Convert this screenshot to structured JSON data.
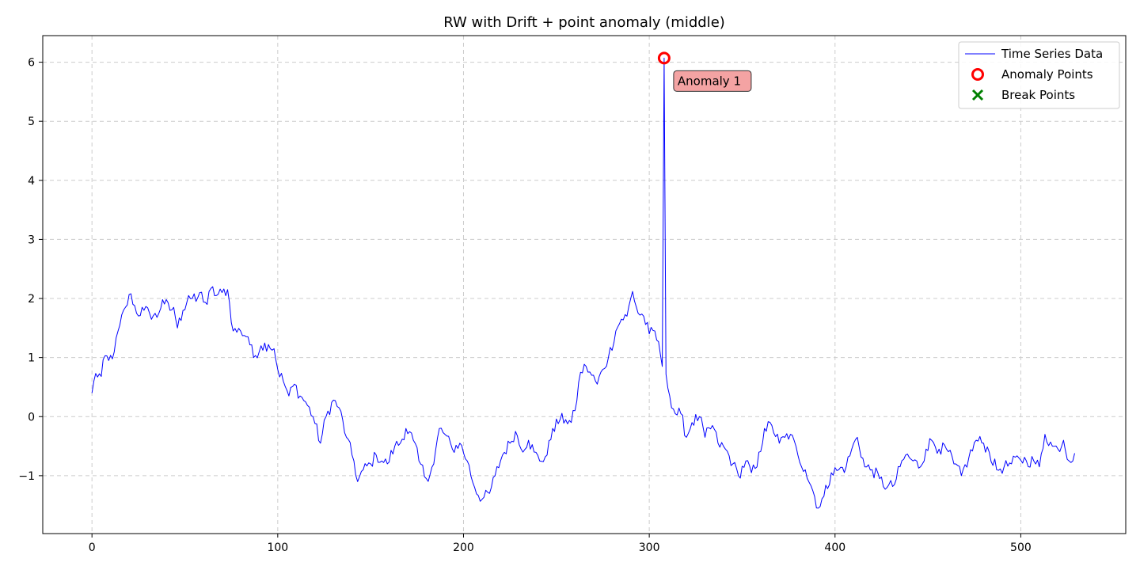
{
  "chart_data": {
    "type": "line",
    "title": "RW with Drift + point anomaly (middle)",
    "xlabel": "",
    "ylabel": "",
    "xlim": [
      -26.5,
      556.5
    ],
    "ylim": [
      -1.98,
      6.45
    ],
    "x_ticks": [
      0,
      100,
      200,
      300,
      400,
      500
    ],
    "y_ticks": [
      -1,
      0,
      1,
      2,
      3,
      4,
      5,
      6
    ],
    "y_tick_labels": [
      "−1",
      "0",
      "1",
      "2",
      "3",
      "4",
      "5",
      "6"
    ],
    "grid": true,
    "legend_position": "top-right",
    "colors": {
      "series": "#0000ff",
      "anomaly": "#ff0000",
      "break": "#008000",
      "annotation_bg": "#f4a3a3",
      "grid": "#cccccc"
    },
    "series": [
      {
        "name": "Time Series Data",
        "x_start": 0,
        "x_end": 529,
        "anchors": [
          [
            0,
            0.4
          ],
          [
            2,
            0.73
          ],
          [
            5,
            0.68
          ],
          [
            7,
            1.03
          ],
          [
            9,
            0.95
          ],
          [
            12,
            1.1
          ],
          [
            15,
            1.55
          ],
          [
            18,
            1.85
          ],
          [
            21,
            2.08
          ],
          [
            24,
            1.75
          ],
          [
            28,
            1.8
          ],
          [
            31,
            1.75
          ],
          [
            35,
            1.68
          ],
          [
            38,
            1.98
          ],
          [
            42,
            1.8
          ],
          [
            44,
            1.85
          ],
          [
            46,
            1.5
          ],
          [
            49,
            1.8
          ],
          [
            52,
            2.05
          ],
          [
            56,
            1.95
          ],
          [
            58,
            2.1
          ],
          [
            62,
            1.9
          ],
          [
            64,
            2.17
          ],
          [
            67,
            2.05
          ],
          [
            70,
            2.1
          ],
          [
            73,
            2.15
          ],
          [
            76,
            1.45
          ],
          [
            80,
            1.45
          ],
          [
            84,
            1.35
          ],
          [
            87,
            1.0
          ],
          [
            91,
            1.2
          ],
          [
            95,
            1.22
          ],
          [
            98,
            1.15
          ],
          [
            100,
            0.8
          ],
          [
            103,
            0.6
          ],
          [
            106,
            0.35
          ],
          [
            109,
            0.55
          ],
          [
            112,
            0.35
          ],
          [
            115,
            0.25
          ],
          [
            119,
            0.0
          ],
          [
            123,
            -0.45
          ],
          [
            126,
            0.0
          ],
          [
            130,
            0.28
          ],
          [
            133,
            0.15
          ],
          [
            137,
            -0.35
          ],
          [
            141,
            -0.75
          ],
          [
            143,
            -1.1
          ],
          [
            146,
            -0.9
          ],
          [
            150,
            -0.8
          ],
          [
            153,
            -0.65
          ],
          [
            156,
            -0.75
          ],
          [
            159,
            -0.8
          ],
          [
            163,
            -0.5
          ],
          [
            166,
            -0.45
          ],
          [
            169,
            -0.2
          ],
          [
            173,
            -0.4
          ],
          [
            176,
            -0.75
          ],
          [
            180,
            -1.05
          ],
          [
            184,
            -0.8
          ],
          [
            187,
            -0.2
          ],
          [
            190,
            -0.3
          ],
          [
            194,
            -0.55
          ],
          [
            198,
            -0.45
          ],
          [
            202,
            -0.75
          ],
          [
            206,
            -1.2
          ],
          [
            210,
            -1.4
          ],
          [
            214,
            -1.3
          ],
          [
            217,
            -1.0
          ],
          [
            221,
            -0.65
          ],
          [
            225,
            -0.45
          ],
          [
            228,
            -0.25
          ],
          [
            231,
            -0.55
          ],
          [
            235,
            -0.4
          ],
          [
            238,
            -0.6
          ],
          [
            241,
            -0.75
          ],
          [
            245,
            -0.65
          ],
          [
            248,
            -0.2
          ],
          [
            252,
            -0.05
          ],
          [
            255,
            -0.05
          ],
          [
            258,
            -0.1
          ],
          [
            260,
            0.1
          ],
          [
            263,
            0.75
          ],
          [
            266,
            0.85
          ],
          [
            269,
            0.7
          ],
          [
            272,
            0.55
          ],
          [
            275,
            0.8
          ],
          [
            278,
            1.0
          ],
          [
            282,
            1.45
          ],
          [
            285,
            1.65
          ],
          [
            288,
            1.7
          ],
          [
            291,
            2.12
          ],
          [
            294,
            1.75
          ],
          [
            297,
            1.7
          ],
          [
            300,
            1.4
          ],
          [
            303,
            1.45
          ],
          [
            306,
            1.05
          ],
          [
            307,
            0.85
          ],
          [
            308,
            6.07
          ],
          [
            309,
            0.72
          ],
          [
            311,
            0.35
          ],
          [
            314,
            0.05
          ],
          [
            317,
            0.05
          ],
          [
            320,
            -0.35
          ],
          [
            323,
            -0.1
          ],
          [
            327,
            0.0
          ],
          [
            330,
            -0.35
          ],
          [
            334,
            -0.15
          ],
          [
            337,
            -0.45
          ],
          [
            341,
            -0.55
          ],
          [
            345,
            -0.8
          ],
          [
            348,
            -1.0
          ],
          [
            352,
            -0.75
          ],
          [
            355,
            -0.95
          ],
          [
            358,
            -0.85
          ],
          [
            362,
            -0.2
          ],
          [
            366,
            -0.15
          ],
          [
            370,
            -0.45
          ],
          [
            373,
            -0.35
          ],
          [
            376,
            -0.3
          ],
          [
            380,
            -0.65
          ],
          [
            384,
            -0.9
          ],
          [
            388,
            -1.25
          ],
          [
            391,
            -1.55
          ],
          [
            394,
            -1.35
          ],
          [
            398,
            -0.95
          ],
          [
            402,
            -0.9
          ],
          [
            406,
            -0.85
          ],
          [
            409,
            -0.55
          ],
          [
            412,
            -0.35
          ],
          [
            416,
            -0.85
          ],
          [
            420,
            -0.9
          ],
          [
            424,
            -1.05
          ],
          [
            428,
            -1.2
          ],
          [
            432,
            -1.15
          ],
          [
            435,
            -0.85
          ],
          [
            438,
            -0.65
          ],
          [
            442,
            -0.75
          ],
          [
            446,
            -0.85
          ],
          [
            449,
            -0.55
          ],
          [
            452,
            -0.4
          ],
          [
            456,
            -0.55
          ],
          [
            460,
            -0.55
          ],
          [
            464,
            -0.8
          ],
          [
            468,
            -1.0
          ],
          [
            472,
            -0.7
          ],
          [
            476,
            -0.4
          ],
          [
            480,
            -0.45
          ],
          [
            483,
            -0.6
          ],
          [
            487,
            -0.9
          ],
          [
            491,
            -0.85
          ],
          [
            495,
            -0.8
          ],
          [
            499,
            -0.7
          ],
          [
            503,
            -0.75
          ],
          [
            507,
            -0.75
          ],
          [
            510,
            -0.85
          ],
          [
            513,
            -0.3
          ],
          [
            517,
            -0.5
          ],
          [
            520,
            -0.55
          ],
          [
            523,
            -0.4
          ],
          [
            526,
            -0.75
          ],
          [
            529,
            -0.62
          ]
        ]
      },
      {
        "name": "Anomaly Points",
        "points": [
          [
            308,
            6.07
          ]
        ]
      },
      {
        "name": "Break Points",
        "points": []
      }
    ],
    "annotations": [
      {
        "text": "Anomaly 1",
        "x": 308,
        "y": 6.07
      }
    ],
    "legend": [
      "Time Series Data",
      "Anomaly Points",
      "Break Points"
    ]
  }
}
